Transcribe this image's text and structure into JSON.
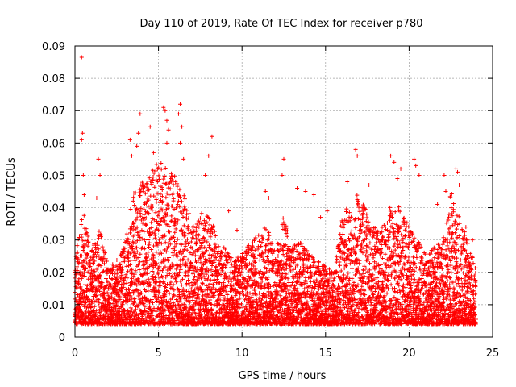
{
  "chart_data": {
    "type": "scatter",
    "title": "Day 110 of 2019, Rate Of TEC Index for receiver p780",
    "xlabel": "GPS time / hours",
    "ylabel": "ROTI / TECUs",
    "xlim": [
      0,
      25
    ],
    "ylim": [
      0,
      0.09
    ],
    "xticks": [
      0,
      5,
      10,
      15,
      20,
      25
    ],
    "xtick_labels": [
      "0",
      "5",
      "10",
      "15",
      "20",
      "25"
    ],
    "yticks": [
      0,
      0.01,
      0.02,
      0.03,
      0.04,
      0.05,
      0.06,
      0.07,
      0.08,
      0.09
    ],
    "ytick_labels": [
      "0",
      "0.01",
      "0.02",
      "0.03",
      "0.04",
      "0.05",
      "0.06",
      "0.07",
      "0.08",
      "0.09"
    ],
    "grid": true,
    "marker": "+",
    "color": "#ff0000",
    "series": [
      {
        "name": "ROTI",
        "points": [
          [
            0.4,
            0.0865
          ],
          [
            0.45,
            0.063
          ],
          [
            0.4,
            0.061
          ],
          [
            0.5,
            0.05
          ],
          [
            0.55,
            0.044
          ],
          [
            1.4,
            0.055
          ],
          [
            1.5,
            0.05
          ],
          [
            1.3,
            0.043
          ],
          [
            3.3,
            0.061
          ],
          [
            3.4,
            0.056
          ],
          [
            3.9,
            0.069
          ],
          [
            3.8,
            0.063
          ],
          [
            3.7,
            0.059
          ],
          [
            4.5,
            0.065
          ],
          [
            4.7,
            0.057
          ],
          [
            5.3,
            0.071
          ],
          [
            5.4,
            0.07
          ],
          [
            5.5,
            0.067
          ],
          [
            5.6,
            0.064
          ],
          [
            5.5,
            0.06
          ],
          [
            6.3,
            0.072
          ],
          [
            6.2,
            0.069
          ],
          [
            6.4,
            0.065
          ],
          [
            6.3,
            0.06
          ],
          [
            6.5,
            0.055
          ],
          [
            8.0,
            0.056
          ],
          [
            8.2,
            0.062
          ],
          [
            7.8,
            0.05
          ],
          [
            9.2,
            0.039
          ],
          [
            9.7,
            0.033
          ],
          [
            11.4,
            0.045
          ],
          [
            11.6,
            0.043
          ],
          [
            12.5,
            0.055
          ],
          [
            12.4,
            0.05
          ],
          [
            13.3,
            0.046
          ],
          [
            13.8,
            0.045
          ],
          [
            14.3,
            0.044
          ],
          [
            14.7,
            0.037
          ],
          [
            15.1,
            0.039
          ],
          [
            16.3,
            0.048
          ],
          [
            16.8,
            0.058
          ],
          [
            16.9,
            0.056
          ],
          [
            17.6,
            0.047
          ],
          [
            18.9,
            0.056
          ],
          [
            19.1,
            0.054
          ],
          [
            19.3,
            0.049
          ],
          [
            19.5,
            0.052
          ],
          [
            20.3,
            0.055
          ],
          [
            20.4,
            0.053
          ],
          [
            20.6,
            0.05
          ],
          [
            21.7,
            0.041
          ],
          [
            22.1,
            0.05
          ],
          [
            22.2,
            0.045
          ],
          [
            22.8,
            0.052
          ],
          [
            22.9,
            0.051
          ],
          [
            23.0,
            0.047
          ],
          [
            23.4,
            0.034
          ],
          [
            23.8,
            0.03
          ]
        ]
      }
    ],
    "dense_fill": {
      "description": "bulk measurements, ROTI values from about 0.004 up to the band ceiling every ~0.02 h",
      "x_range": [
        0,
        24
      ],
      "ceilings": [
        [
          0,
          0.024
        ],
        [
          0.5,
          0.04
        ],
        [
          1.0,
          0.028
        ],
        [
          1.5,
          0.036
        ],
        [
          2.0,
          0.022
        ],
        [
          2.5,
          0.024
        ],
        [
          3.0,
          0.03
        ],
        [
          3.5,
          0.045
        ],
        [
          4.0,
          0.048
        ],
        [
          4.5,
          0.05
        ],
        [
          5.0,
          0.055
        ],
        [
          5.5,
          0.052
        ],
        [
          6.0,
          0.05
        ],
        [
          6.5,
          0.045
        ],
        [
          7.0,
          0.035
        ],
        [
          7.5,
          0.038
        ],
        [
          8.0,
          0.04
        ],
        [
          8.5,
          0.03
        ],
        [
          9.0,
          0.028
        ],
        [
          9.5,
          0.024
        ],
        [
          10.0,
          0.026
        ],
        [
          10.5,
          0.03
        ],
        [
          11.0,
          0.032
        ],
        [
          11.5,
          0.036
        ],
        [
          12.0,
          0.026
        ],
        [
          12.5,
          0.038
        ],
        [
          13.0,
          0.028
        ],
        [
          13.5,
          0.03
        ],
        [
          14.0,
          0.026
        ],
        [
          14.5,
          0.024
        ],
        [
          15.0,
          0.022
        ],
        [
          15.5,
          0.02
        ],
        [
          16.0,
          0.038
        ],
        [
          16.5,
          0.042
        ],
        [
          17.0,
          0.045
        ],
        [
          17.5,
          0.038
        ],
        [
          18.0,
          0.034
        ],
        [
          18.5,
          0.036
        ],
        [
          19.0,
          0.042
        ],
        [
          19.5,
          0.04
        ],
        [
          20.0,
          0.034
        ],
        [
          20.5,
          0.03
        ],
        [
          21.0,
          0.026
        ],
        [
          21.5,
          0.028
        ],
        [
          22.0,
          0.03
        ],
        [
          22.5,
          0.045
        ],
        [
          23.0,
          0.04
        ],
        [
          23.5,
          0.03
        ],
        [
          24.0,
          0.022
        ]
      ],
      "floor": 0.004
    }
  }
}
